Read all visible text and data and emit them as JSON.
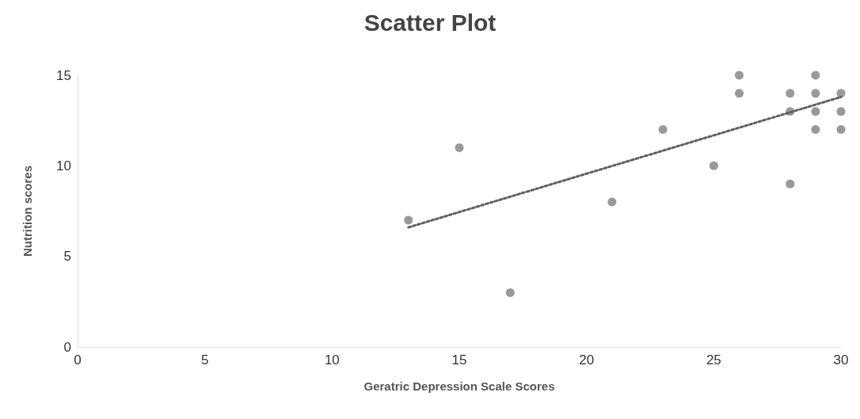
{
  "chart_data": {
    "type": "scatter",
    "title": "Scatter Plot",
    "xlabel": "Geratric Depression Scale Scores",
    "ylabel": "Nutrition scores",
    "xlim": [
      0,
      30
    ],
    "xticks": [
      0,
      5,
      10,
      15,
      20,
      25,
      30
    ],
    "ylim": [
      0,
      15
    ],
    "yticks": [
      0,
      5,
      10,
      15
    ],
    "grid": false,
    "marker": "circle",
    "series": [
      {
        "color": "#808080",
        "x": [
          13,
          15,
          17,
          21,
          23,
          25,
          26,
          26,
          28,
          28,
          28,
          29,
          29,
          29,
          29,
          30,
          30,
          30
        ],
        "values": [
          7,
          11,
          3,
          8,
          12,
          10,
          15,
          14,
          14,
          13,
          9,
          15,
          14,
          13,
          12,
          14,
          13,
          12
        ]
      },
      {
        "type": "line",
        "color": "#606060",
        "line_style": "dotted",
        "marker": "none",
        "x": [
          13,
          30
        ],
        "values": [
          6.6,
          13.8
        ]
      }
    ]
  }
}
